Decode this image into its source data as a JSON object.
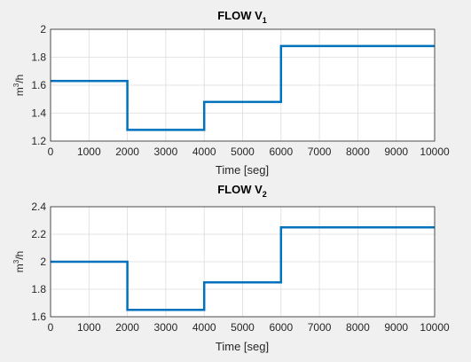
{
  "chart_data": [
    {
      "type": "line",
      "title": "FLOW V",
      "title_sub": "1",
      "xlabel": "Time [seg]",
      "ylabel": "m",
      "ylabel_sup": "3",
      "ylabel_suffix": "/h",
      "xlim": [
        0,
        10000
      ],
      "ylim": [
        1.2,
        2.0
      ],
      "xticks": [
        0,
        1000,
        2000,
        3000,
        4000,
        5000,
        6000,
        7000,
        8000,
        9000,
        10000
      ],
      "yticks": [
        1.2,
        1.4,
        1.6,
        1.8,
        2.0
      ],
      "xtick_labels": [
        "0",
        "1000",
        "2000",
        "3000",
        "4000",
        "5000",
        "6000",
        "7000",
        "8000",
        "9000",
        "10000"
      ],
      "ytick_labels": [
        "1.2",
        "1.4",
        "1.6",
        "1.8",
        "2"
      ],
      "grid": true,
      "series": [
        {
          "x": [
            0,
            2000,
            2000,
            4000,
            4000,
            6000,
            6000,
            10000
          ],
          "y": [
            1.63,
            1.63,
            1.28,
            1.28,
            1.48,
            1.48,
            1.88,
            1.88
          ]
        }
      ]
    },
    {
      "type": "line",
      "title": "FLOW V",
      "title_sub": "2",
      "xlabel": "Time [seg]",
      "ylabel": "m",
      "ylabel_sup": "3",
      "ylabel_suffix": "/h",
      "xlim": [
        0,
        10000
      ],
      "ylim": [
        1.6,
        2.4
      ],
      "xticks": [
        0,
        1000,
        2000,
        3000,
        4000,
        5000,
        6000,
        7000,
        8000,
        9000,
        10000
      ],
      "yticks": [
        1.6,
        1.8,
        2.0,
        2.2,
        2.4
      ],
      "xtick_labels": [
        "0",
        "1000",
        "2000",
        "3000",
        "4000",
        "5000",
        "6000",
        "7000",
        "8000",
        "9000",
        "10000"
      ],
      "ytick_labels": [
        "1.6",
        "1.8",
        "2",
        "2.2",
        "2.4"
      ],
      "grid": true,
      "series": [
        {
          "x": [
            0,
            2000,
            2000,
            4000,
            4000,
            6000,
            6000,
            10000
          ],
          "y": [
            2.0,
            2.0,
            1.65,
            1.65,
            1.85,
            1.85,
            2.25,
            2.25
          ]
        }
      ]
    }
  ],
  "colors": {
    "line": "#0072bd",
    "grid": "#dcdcdc",
    "axes_bg": "#ffffff",
    "figure_bg": "#f0f0f0"
  }
}
